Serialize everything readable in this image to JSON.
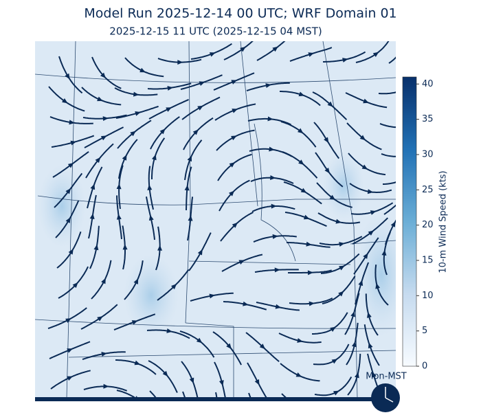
{
  "header": {
    "title": "Model Run 2025-12-14 00 UTC; WRF Domain 01",
    "subtitle": "2025-12-15 11 UTC  (2025-12-15 04 MST)"
  },
  "colorbar": {
    "label": "10-m Wind Speed (kts)",
    "lim": [
      0,
      41
    ],
    "ticks": [
      0,
      5,
      10,
      15,
      20,
      25,
      30,
      35,
      40
    ]
  },
  "clock": {
    "label": "Mon-MST"
  }
}
